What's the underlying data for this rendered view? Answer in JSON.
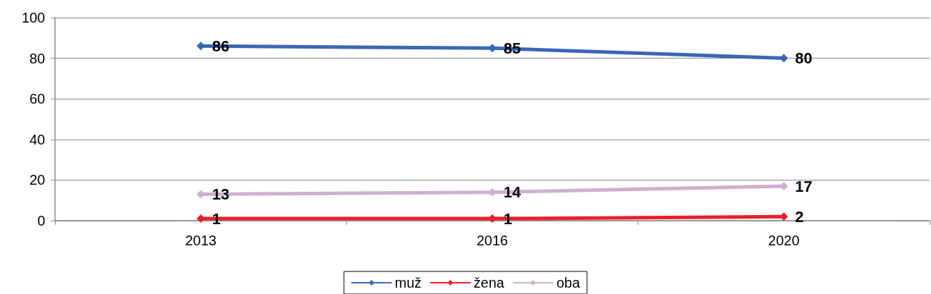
{
  "chart_data": {
    "type": "line",
    "categories": [
      "2013",
      "2016",
      "2020"
    ],
    "series": [
      {
        "name": "muž",
        "color": "#3a67b5",
        "values": [
          86,
          85,
          80
        ]
      },
      {
        "name": "žena",
        "color": "#e8202a",
        "values": [
          1,
          1,
          2
        ]
      },
      {
        "name": "oba",
        "color": "#cfb0d0",
        "values": [
          13,
          14,
          17
        ]
      }
    ],
    "ylim": [
      0,
      100
    ],
    "yticks": [
      0,
      20,
      40,
      60,
      80,
      100
    ],
    "grid": "y",
    "legend": "bottom",
    "marker": "diamond",
    "line_style": "solid",
    "data_labels": true
  }
}
